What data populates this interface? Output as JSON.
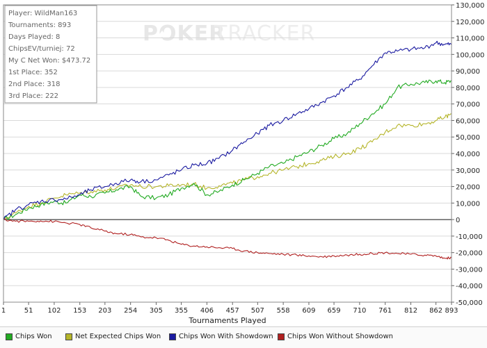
{
  "stats": [
    "Player: WildMan163",
    "Tournaments: 893",
    "Days Played: 8",
    "ChipsEV/turniej: 72",
    "My C Net Won: $473.72",
    "1st Place: 352",
    "2nd Place: 318",
    "3rd Place: 222"
  ],
  "watermark": {
    "bold": "POKER",
    "light": "TRACKER",
    "spade_icon": "spade-icon"
  },
  "colors": {
    "chips_won": "#22aa22",
    "net_expected": "#b5b52a",
    "with_showdown": "#1a1aa0",
    "without_showdown": "#b02020",
    "grid": "#d9d9d9"
  },
  "chart_data": {
    "type": "line",
    "xlabel": "Tournaments Played",
    "ylabel": "",
    "xlim": [
      1,
      893
    ],
    "ylim": [
      -50000,
      130000
    ],
    "grid": true,
    "legend_position": "bottom",
    "x_ticks": [
      "1",
      "51",
      "102",
      "153",
      "203",
      "254",
      "305",
      "355",
      "406",
      "457",
      "507",
      "558",
      "609",
      "659",
      "710",
      "761",
      "812",
      "862",
      "893"
    ],
    "y_ticks": [
      "130,000",
      "120,000",
      "110,000",
      "100,000",
      "90,000",
      "80,000",
      "70,000",
      "60,000",
      "50,000",
      "40,000",
      "30,000",
      "20,000",
      "10,000",
      "0",
      "-10,000",
      "-20,000",
      "-30,000",
      "-40,000",
      "-50,000"
    ],
    "y_tick_values": [
      130000,
      120000,
      110000,
      100000,
      90000,
      80000,
      70000,
      60000,
      50000,
      40000,
      30000,
      20000,
      10000,
      0,
      -10000,
      -20000,
      -30000,
      -40000,
      -50000
    ],
    "x": [
      1,
      25,
      51,
      75,
      102,
      125,
      153,
      175,
      203,
      225,
      254,
      275,
      305,
      330,
      355,
      380,
      406,
      430,
      457,
      480,
      507,
      530,
      558,
      585,
      609,
      635,
      659,
      685,
      710,
      735,
      761,
      785,
      812,
      840,
      862,
      880,
      893
    ],
    "series": [
      {
        "name": "Chips Won",
        "color": "#22aa22",
        "values": [
          0,
          3000,
          7000,
          9000,
          11000,
          10000,
          15000,
          14000,
          16000,
          18000,
          20000,
          14000,
          13000,
          15000,
          19000,
          22000,
          15000,
          17000,
          21000,
          24000,
          28000,
          32000,
          34000,
          38000,
          41000,
          45000,
          49000,
          52000,
          58000,
          64000,
          70000,
          80000,
          82000,
          83000,
          84000,
          83000,
          84000
        ]
      },
      {
        "name": "Net Expected Chips Won",
        "color": "#b5b52a",
        "values": [
          0,
          4000,
          8000,
          10000,
          13000,
          15000,
          16000,
          17000,
          18000,
          19000,
          21000,
          20000,
          20000,
          20500,
          21000,
          21500,
          19000,
          20500,
          22000,
          24000,
          26000,
          28000,
          30000,
          32000,
          34000,
          36000,
          38000,
          40000,
          43000,
          47000,
          53000,
          57000,
          57000,
          58000,
          60000,
          62000,
          64000
        ]
      },
      {
        "name": "Chips Won With Showdown",
        "color": "#1a1aa0",
        "values": [
          0,
          6000,
          9000,
          11000,
          12000,
          12500,
          15000,
          18000,
          20000,
          22000,
          24000,
          23000,
          24000,
          27000,
          30000,
          33000,
          34000,
          37000,
          42000,
          47000,
          52000,
          57000,
          60000,
          64000,
          67000,
          71000,
          75000,
          80000,
          85000,
          93000,
          101000,
          102000,
          103000,
          104000,
          107000,
          106000,
          106000
        ]
      },
      {
        "name": "Chips Won Without Showdown",
        "color": "#b02020",
        "values": [
          0,
          -1000,
          -1000,
          -800,
          -1200,
          -2000,
          -3000,
          -5000,
          -7000,
          -8500,
          -9000,
          -10500,
          -11000,
          -12500,
          -15000,
          -16000,
          -16500,
          -17000,
          -17500,
          -19000,
          -20000,
          -20500,
          -21000,
          -21500,
          -22000,
          -22500,
          -22000,
          -21500,
          -21000,
          -20500,
          -20000,
          -20500,
          -21000,
          -21500,
          -22000,
          -23500,
          -23000
        ]
      }
    ]
  }
}
